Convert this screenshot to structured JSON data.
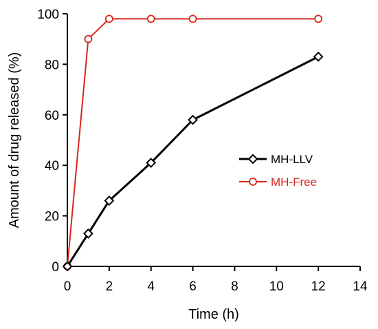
{
  "chart_data": {
    "type": "line",
    "title": "",
    "xlabel": "Time (h)",
    "ylabel": "Amount of drug released (%)",
    "xlim": [
      0,
      14
    ],
    "ylim": [
      0,
      100
    ],
    "xticks": [
      0,
      2,
      4,
      6,
      8,
      10,
      12,
      14
    ],
    "yticks": [
      0,
      20,
      40,
      60,
      80,
      100
    ],
    "grid": false,
    "legend_position": "center-right",
    "series": [
      {
        "name": "MH-LLV",
        "color": "#000000",
        "marker": "diamond",
        "x": [
          0,
          1,
          2,
          4,
          6,
          12
        ],
        "y": [
          0,
          13,
          26,
          41,
          58,
          83
        ]
      },
      {
        "name": "MH-Free",
        "color": "#d9261c",
        "marker": "circle",
        "x": [
          0,
          1,
          2,
          4,
          6,
          12
        ],
        "y": [
          0,
          90,
          98,
          98,
          98,
          98
        ]
      }
    ]
  }
}
